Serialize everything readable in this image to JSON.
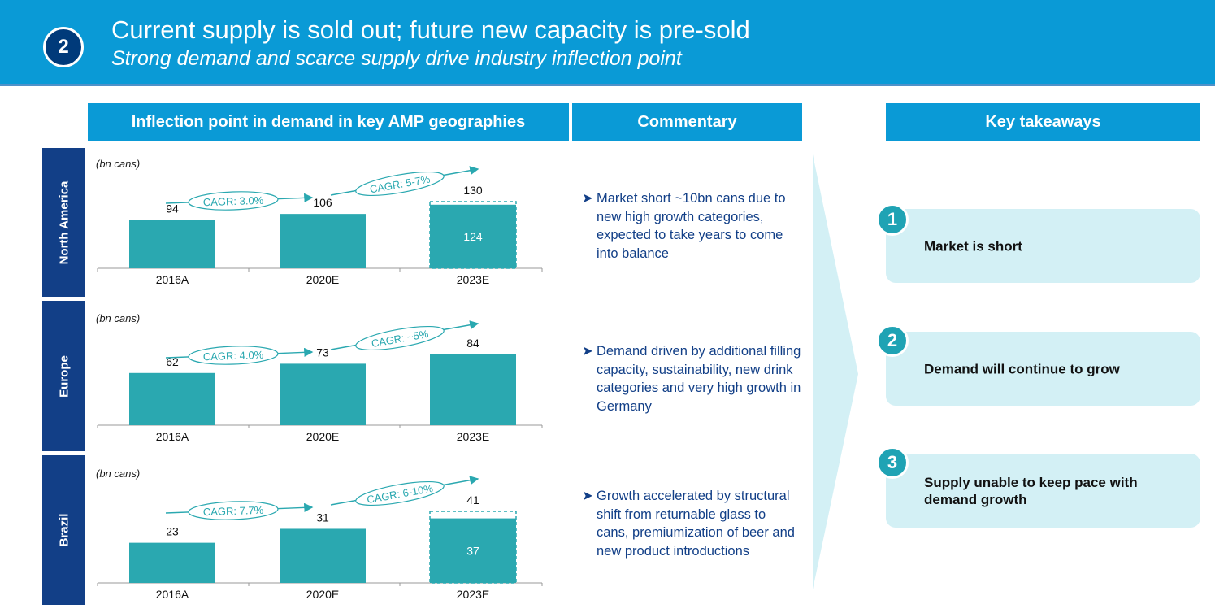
{
  "banner": {
    "number": "2",
    "title": "Current supply is sold out; future new capacity is pre-sold",
    "subtitle": "Strong demand and scarce supply drive industry inflection point"
  },
  "headers": {
    "chart": "Inflection point in demand in key AMP geographies",
    "commentary": "Commentary",
    "takeaways": "Key takeaways"
  },
  "regions": [
    {
      "label": "North America"
    },
    {
      "label": "Europe"
    },
    {
      "label": "Brazil"
    }
  ],
  "chart_data": [
    {
      "type": "bar",
      "title": "North America",
      "ylabel": "(bn cans)",
      "categories": [
        "2016A",
        "2020E",
        "2023E"
      ],
      "values": [
        94,
        106,
        130
      ],
      "inner_values": [
        null,
        null,
        124
      ],
      "ylim": [
        0,
        160
      ],
      "annotations": [
        "CAGR: 3.0%",
        "CAGR: 5-7%"
      ]
    },
    {
      "type": "bar",
      "title": "Europe",
      "ylabel": "(bn cans)",
      "categories": [
        "2016A",
        "2020E",
        "2023E"
      ],
      "values": [
        62,
        73,
        84
      ],
      "inner_values": [
        null,
        null,
        null
      ],
      "ylim": [
        0,
        120
      ],
      "annotations": [
        "CAGR: 4.0%",
        "CAGR: ~5%"
      ]
    },
    {
      "type": "bar",
      "title": "Brazil",
      "ylabel": "(bn cans)",
      "categories": [
        "2016A",
        "2020E",
        "2023E"
      ],
      "values": [
        23,
        31,
        41
      ],
      "inner_values": [
        null,
        null,
        37
      ],
      "ylim": [
        0,
        50
      ],
      "annotations": [
        "CAGR: 7.7%",
        "CAGR: 6-10%"
      ]
    }
  ],
  "commentary": [
    "Market short ~10bn cans due to new high growth categories, expected to take years to come into balance",
    "Demand driven by additional filling capacity, sustainability, new drink categories and very high growth in Germany",
    "Growth accelerated by structural shift from returnable glass to cans, premiumization of beer and new product introductions"
  ],
  "takeaways": [
    {
      "number": "1",
      "text": "Market is short"
    },
    {
      "number": "2",
      "text": "Demand will continue to grow"
    },
    {
      "number": "3",
      "text": "Supply unable to keep pace with demand growth"
    }
  ],
  "colors": {
    "banner": "#0a9ad6",
    "navy": "#123f87",
    "bar": "#2aa8b0",
    "light": "#d3f0f5"
  }
}
